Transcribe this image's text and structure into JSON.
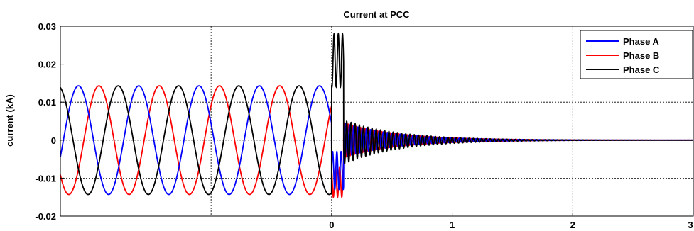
{
  "chart_data": {
    "type": "line",
    "title": "Current at PCC",
    "xlabel": "",
    "ylabel": "current (kA)",
    "xlim": [
      -2.25,
      3
    ],
    "ylim": [
      -0.02,
      0.03
    ],
    "x_ticks": [
      0,
      1,
      2,
      3
    ],
    "y_ticks": [
      -0.02,
      -0.01,
      0,
      0.01,
      0.02,
      0.03
    ],
    "x_tick_labels": [
      "0",
      "1",
      "2",
      "3"
    ],
    "y_tick_labels": [
      "-0.02",
      "-0.01",
      "0",
      "0.01",
      "0.02",
      "0.03"
    ],
    "grid": true,
    "legend_position": "top-right",
    "pre_fault": {
      "amplitude": 0.0143,
      "period": 0.5,
      "peak_times": {
        "Phase A": -1.6,
        "Phase B": -1.43,
        "Phase C": -1.77
      }
    },
    "series": [
      {
        "name": "Phase A",
        "color": "#0000ff"
      },
      {
        "name": "Phase B",
        "color": "#ff0000"
      },
      {
        "name": "Phase C",
        "color": "#000000"
      }
    ]
  }
}
